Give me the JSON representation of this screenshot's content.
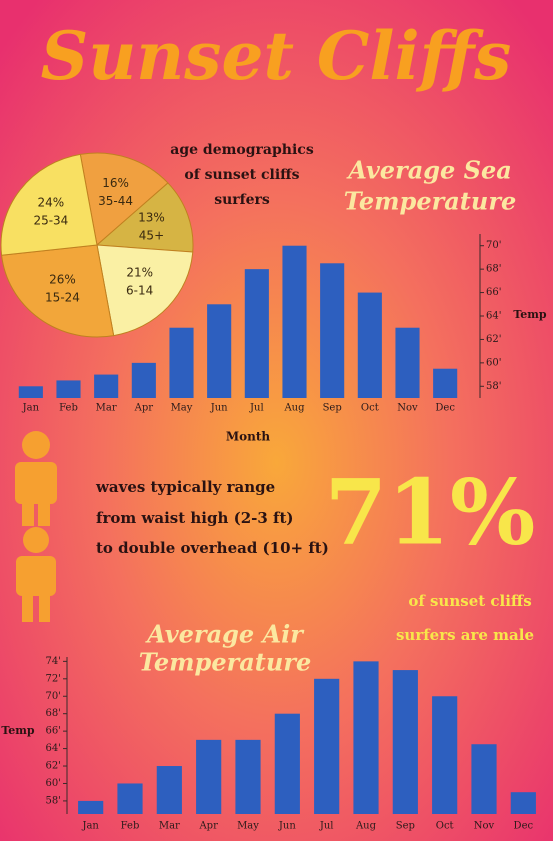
{
  "title": "Sunset Cliffs",
  "waves_text": [
    "waves typically range",
    "from waist high (2-3 ft)",
    "to double overhead (10+ ft)"
  ],
  "stat": "71%",
  "stat_caption": [
    "of sunset cliffs",
    "surfers are male"
  ],
  "chart_data": [
    {
      "type": "pie",
      "title": [
        "age demographics",
        "of sunset cliffs",
        "surfers"
      ],
      "categories": [
        "35-44",
        "45+",
        "6-14",
        "15-24",
        "25-34"
      ],
      "values": [
        16,
        13,
        21,
        26,
        24
      ],
      "value_labels": [
        "16%",
        "13%",
        "21%",
        "26%",
        "24%"
      ],
      "colors": [
        "#f0a040",
        "#d6b444",
        "#faf0a4",
        "#f2a63a",
        "#f8e062"
      ]
    },
    {
      "type": "bar",
      "title": [
        "Average Sea",
        "Temperature"
      ],
      "x_label": "Month",
      "y_label": "Temp",
      "categories": [
        "Jan",
        "Feb",
        "Mar",
        "Apr",
        "May",
        "Jun",
        "Jul",
        "Aug",
        "Sep",
        "Oct",
        "Nov",
        "Dec"
      ],
      "values": [
        58,
        58.5,
        59,
        60,
        63,
        65,
        68,
        70,
        68.5,
        66,
        63,
        59.5
      ],
      "color": "#2d5fbf",
      "ylim": [
        57,
        71
      ],
      "yticks": [
        {
          "value": 58,
          "label": "58'"
        },
        {
          "value": 60,
          "label": "60'"
        },
        {
          "value": 62,
          "label": "62'"
        },
        {
          "value": 64,
          "label": "64'"
        },
        {
          "value": 66,
          "label": "66'"
        },
        {
          "value": 68,
          "label": "68'"
        },
        {
          "value": 70,
          "label": "70'"
        }
      ]
    },
    {
      "type": "bar",
      "title": [
        "Average Air",
        "Temperature"
      ],
      "y_label": "Temp",
      "categories": [
        "Jan",
        "Feb",
        "Mar",
        "Apr",
        "May",
        "Jun",
        "Jul",
        "Aug",
        "Sep",
        "Oct",
        "Nov",
        "Dec"
      ],
      "values": [
        58,
        60,
        62,
        65,
        65,
        68,
        72,
        74,
        73,
        70,
        64.5,
        59
      ],
      "color": "#2d5fbf",
      "ylim": [
        56.5,
        74.5
      ],
      "yticks": [
        {
          "value": 58,
          "label": "58'"
        },
        {
          "value": 60,
          "label": "60'"
        },
        {
          "value": 62,
          "label": "62'"
        },
        {
          "value": 64,
          "label": "64'"
        },
        {
          "value": 66,
          "label": "66'"
        },
        {
          "value": 68,
          "label": "68'"
        },
        {
          "value": 70,
          "label": "70'"
        },
        {
          "value": 72,
          "label": "72'"
        },
        {
          "value": 74,
          "label": "74'"
        }
      ]
    }
  ]
}
